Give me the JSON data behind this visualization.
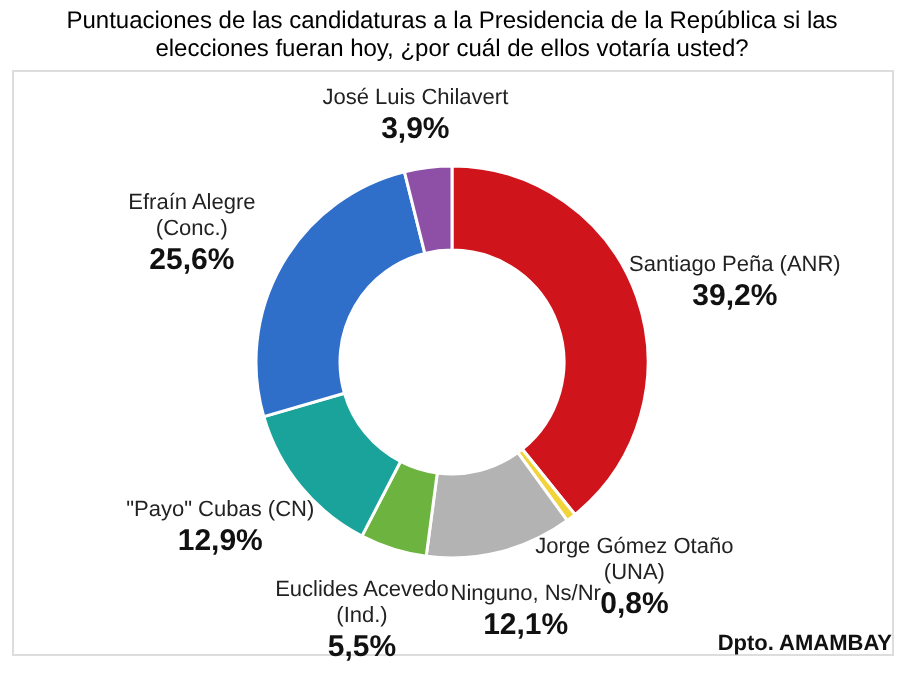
{
  "chart_data": {
    "type": "donut",
    "title": "Puntuaciones de las candidaturas a la Presidencia de la República si las elecciones fueran hoy, ¿por cuál de ellos votaría usted?",
    "categories": [
      "Santiago Peña (ANR)",
      "Jorge Gómez Otaño (UNA)",
      "Ninguno, Ns/Nr",
      "Euclides Acevedo (Ind.)",
      "\"Payo\" Cubas (CN)",
      "Efraín Alegre (Conc.)",
      "José Luis Chilavert"
    ],
    "values": [
      39.2,
      0.8,
      12.1,
      5.5,
      12.9,
      25.6,
      3.9
    ],
    "value_labels": [
      "39,2%",
      "0,8%",
      "12,1%",
      "5,5%",
      "12,9%",
      "25,6%",
      "3,9%"
    ],
    "colors": [
      "#d0141b",
      "#f2d33a",
      "#b3b3b3",
      "#6db33f",
      "#1aa39a",
      "#2f6fc9",
      "#8e4fa6"
    ],
    "annotations": [
      "Dpto. AMAMBAY"
    ],
    "legend": false
  }
}
